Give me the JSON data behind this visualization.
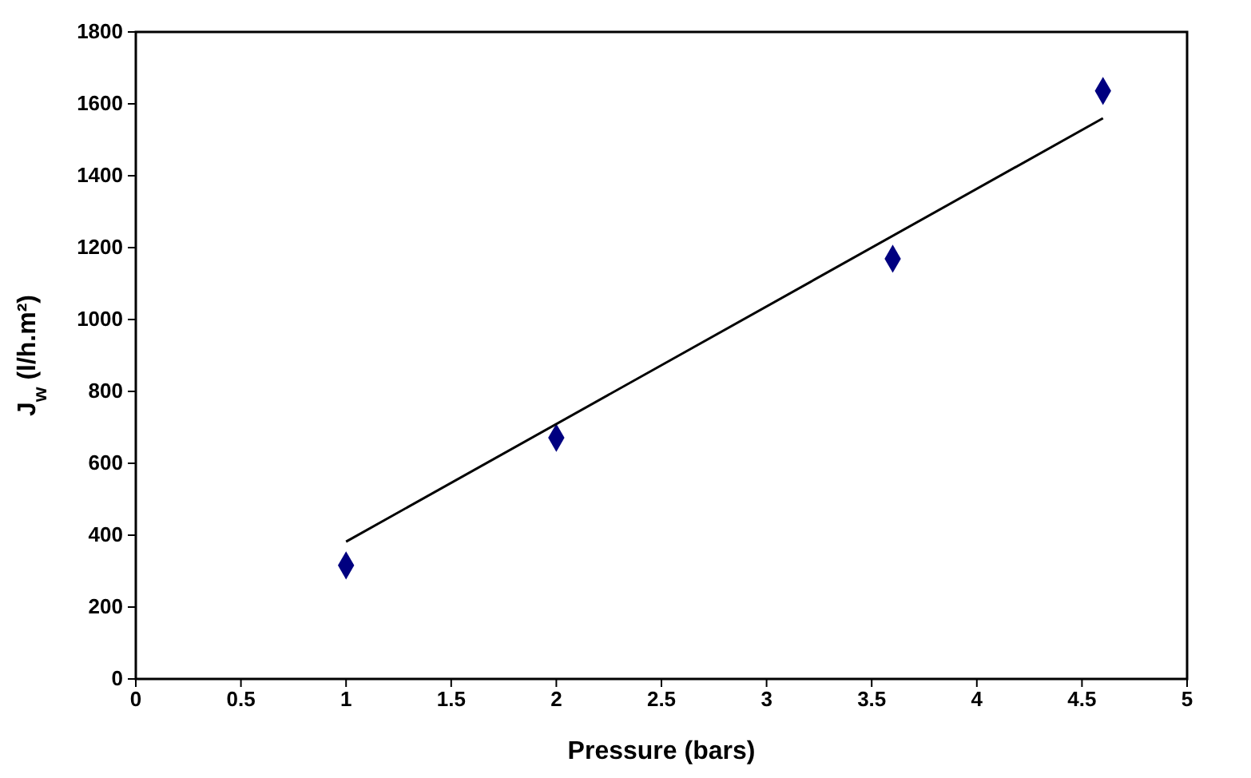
{
  "chart_data": {
    "type": "scatter",
    "xlabel": "Pressure (bars)",
    "ylabel": "J$_{w}$ (l/h.m²)",
    "xlim": [
      0,
      5
    ],
    "xticks": [
      0,
      0.5,
      1,
      1.5,
      2,
      2.5,
      3,
      3.5,
      4,
      4.5,
      5
    ],
    "ylim": [
      0,
      1800
    ],
    "yticks": [
      0,
      200,
      400,
      600,
      800,
      1000,
      1200,
      1400,
      1600,
      1800
    ],
    "grid": false,
    "series": [
      {
        "color": "#000080",
        "marker": "diamond",
        "x": [
          1,
          2,
          3.6,
          4.6
        ],
        "values": [
          316,
          671,
          1169,
          1636
        ]
      },
      {
        "type": "line",
        "marker": "none",
        "color": "#000000",
        "x": [
          1,
          4.6
        ],
        "values": [
          382,
          1560
        ]
      }
    ]
  }
}
